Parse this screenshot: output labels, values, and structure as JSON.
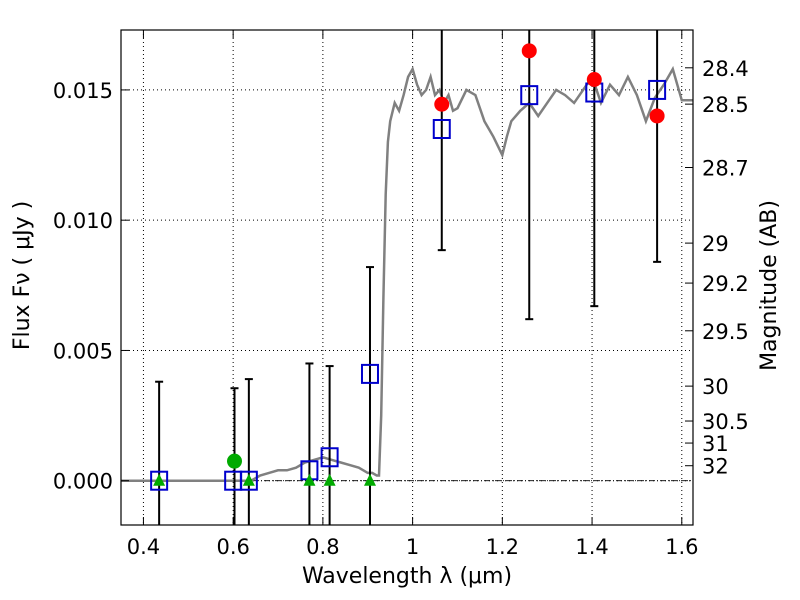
{
  "chart_data": {
    "type": "scatter",
    "xlabel": "Wavelength  λ (μm)",
    "ylabel": "Flux  Fν  ( μJy )",
    "y2label": "Magnitude (AB)",
    "xlim": [
      0.35,
      1.625
    ],
    "ylim": [
      -0.0017,
      0.0173
    ],
    "x_ticks": [
      0.4,
      0.6,
      0.8,
      1.0,
      1.2,
      1.4,
      1.6
    ],
    "x_tick_labels": [
      "0.4",
      "0.6",
      "0.8",
      "1",
      "1.2",
      "1.4",
      "1.6"
    ],
    "y_ticks": [
      0.0,
      0.005,
      0.01,
      0.015
    ],
    "y_tick_labels": [
      "0.000",
      "0.005",
      "0.010",
      "0.015"
    ],
    "mag_ticks": [
      28.4,
      28.5,
      28.7,
      29,
      29.2,
      29.5,
      30,
      30.5,
      31,
      32
    ],
    "mag_tick_labels": [
      "28.4",
      "28.5",
      "28.7",
      "29",
      "29.2",
      "29.5",
      "30",
      "30.5",
      "31",
      "32"
    ],
    "grid": true,
    "colors": {
      "model": "#808080",
      "model_points": "#0000cc",
      "observed": "#ff0000",
      "upper_limit": "#00aa00",
      "errorbar": "#000000"
    },
    "model_sed": {
      "x": [
        0.35,
        0.4,
        0.45,
        0.5,
        0.55,
        0.6,
        0.62,
        0.64,
        0.66,
        0.68,
        0.7,
        0.72,
        0.74,
        0.76,
        0.78,
        0.8,
        0.82,
        0.84,
        0.86,
        0.88,
        0.9,
        0.91,
        0.92,
        0.925,
        0.93,
        0.935,
        0.94,
        0.945,
        0.95,
        0.96,
        0.97,
        0.98,
        0.99,
        1.0,
        1.01,
        1.02,
        1.03,
        1.04,
        1.05,
        1.06,
        1.07,
        1.08,
        1.09,
        1.1,
        1.12,
        1.14,
        1.16,
        1.18,
        1.2,
        1.21,
        1.22,
        1.24,
        1.26,
        1.28,
        1.3,
        1.32,
        1.34,
        1.36,
        1.38,
        1.4,
        1.42,
        1.44,
        1.46,
        1.48,
        1.5,
        1.52,
        1.54,
        1.56,
        1.58,
        1.6,
        1.625
      ],
      "y": [
        0.0,
        0.0,
        0.0,
        0.0,
        0.0,
        0.0,
        0.0,
        0.0,
        0.0002,
        0.0003,
        0.0004,
        0.0004,
        0.0005,
        0.0007,
        0.0008,
        0.0009,
        0.0008,
        0.0007,
        0.0006,
        0.0005,
        0.0003,
        0.0003,
        0.0002,
        0.0002,
        0.0025,
        0.007,
        0.011,
        0.013,
        0.0138,
        0.0145,
        0.0142,
        0.0148,
        0.0155,
        0.0158,
        0.0152,
        0.0148,
        0.015,
        0.0155,
        0.0148,
        0.015,
        0.0145,
        0.0148,
        0.0142,
        0.0143,
        0.015,
        0.0148,
        0.0138,
        0.0132,
        0.0125,
        0.0132,
        0.0138,
        0.0142,
        0.0145,
        0.014,
        0.0145,
        0.015,
        0.0148,
        0.0145,
        0.015,
        0.0155,
        0.0145,
        0.0152,
        0.0148,
        0.0155,
        0.0148,
        0.0138,
        0.0147,
        0.0152,
        0.0158,
        0.0146,
        0.0146
      ]
    },
    "series": [
      {
        "marker": "square",
        "points": [
          {
            "x": 0.435,
            "y": 0.0
          },
          {
            "x": 0.6,
            "y": 0.0
          },
          {
            "x": 0.635,
            "y": 0.0
          },
          {
            "x": 0.77,
            "y": 0.0004
          },
          {
            "x": 0.815,
            "y": 0.0009
          },
          {
            "x": 0.905,
            "y": 0.0041
          },
          {
            "x": 1.065,
            "y": 0.0135
          },
          {
            "x": 1.26,
            "y": 0.0148
          },
          {
            "x": 1.405,
            "y": 0.0149
          },
          {
            "x": 1.545,
            "y": 0.015
          }
        ]
      },
      {
        "marker": "circle",
        "points": [
          {
            "x": 1.065,
            "y": 0.01445,
            "yerr": 0.0056
          },
          {
            "x": 1.26,
            "y": 0.0165,
            "yerr": 0.0103
          },
          {
            "x": 1.405,
            "y": 0.0154,
            "yerr": 0.0087
          },
          {
            "x": 1.545,
            "y": 0.014,
            "yerr": 0.0056
          }
        ]
      },
      {
        "marker": "triangle",
        "points": [
          {
            "x": 0.435,
            "y": 0.0,
            "yerr": 0.0038
          },
          {
            "x": 0.635,
            "y": 0.0,
            "yerr": 0.0039
          },
          {
            "x": 0.77,
            "y": 0.0,
            "yerr": 0.0045
          },
          {
            "x": 0.815,
            "y": 0.0,
            "yerr": 0.0044
          },
          {
            "x": 0.905,
            "y": 0.0,
            "yerr": 0.0082
          }
        ]
      },
      {
        "marker": "circle-green",
        "points": [
          {
            "x": 0.603,
            "y": 0.00075,
            "yerr": 0.0028
          }
        ]
      }
    ]
  }
}
